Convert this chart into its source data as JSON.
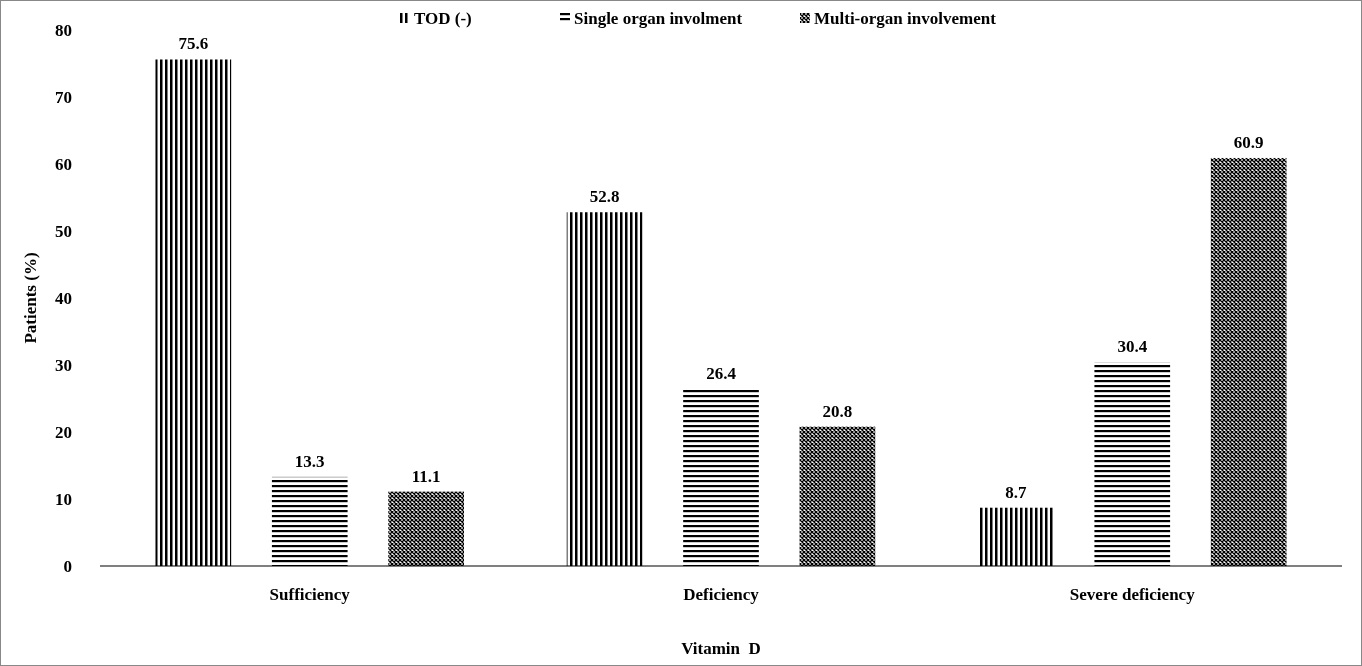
{
  "chart_data": {
    "type": "bar",
    "xlabel": "Vitamin  D",
    "ylabel": "Patients (%)",
    "categories": [
      "Sufficiency",
      "Deficiency",
      "Severe deficiency"
    ],
    "series": [
      {
        "name": "TOD (-)",
        "color": "#000000",
        "values": [
          75.6,
          52.8,
          8.7
        ]
      },
      {
        "name": "Single organ involment",
        "color": "#000000",
        "values": [
          13.3,
          26.4,
          30.4
        ]
      },
      {
        "name": "Multi-organ involvement",
        "color": "#000000",
        "values": [
          11.1,
          20.8,
          60.9
        ]
      }
    ],
    "ylim": [
      0,
      80
    ],
    "yticks": [
      0,
      10,
      20,
      30,
      40,
      50,
      60,
      70,
      80
    ],
    "data_labels": true,
    "legend": "top",
    "grid": false
  }
}
